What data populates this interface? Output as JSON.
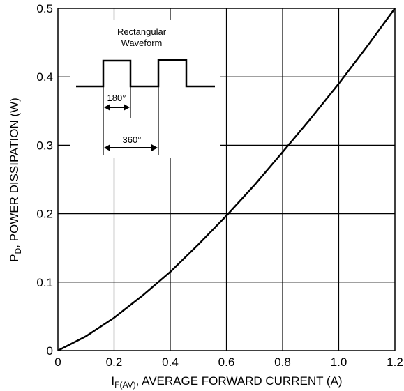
{
  "chart_data": {
    "type": "line",
    "xlabel": {
      "main": "I",
      "sub": "F(AV)",
      "rest": ", AVERAGE FORWARD CURRENT (A)"
    },
    "ylabel": {
      "main": "P",
      "sub": "D",
      "rest": ", POWER DISSIPATION (W)"
    },
    "xlim": [
      0,
      1.2
    ],
    "ylim": [
      0,
      0.5
    ],
    "x_ticks": [
      "0",
      "0.2",
      "0.4",
      "0.6",
      "0.8",
      "1.0",
      "1.2"
    ],
    "y_ticks": [
      "0",
      "0.1",
      "0.2",
      "0.3",
      "0.4",
      "0.5"
    ],
    "x_tick_values": [
      0,
      0.2,
      0.4,
      0.6,
      0.8,
      1.0,
      1.2
    ],
    "y_tick_values": [
      0,
      0.1,
      0.2,
      0.3,
      0.4,
      0.5
    ],
    "grid": true,
    "series": [
      {
        "x": [
          0,
          0.1,
          0.2,
          0.3,
          0.4,
          0.5,
          0.6,
          0.7,
          0.8,
          0.9,
          1.0,
          1.1,
          1.2
        ],
        "y": [
          0,
          0.021,
          0.048,
          0.08,
          0.115,
          0.155,
          0.197,
          0.242,
          0.29,
          0.339,
          0.39,
          0.444,
          0.5
        ]
      }
    ],
    "inset": {
      "title_line1": "Rectangular",
      "title_line2": "Waveform",
      "label_180": "180°",
      "label_360": "360°"
    }
  }
}
